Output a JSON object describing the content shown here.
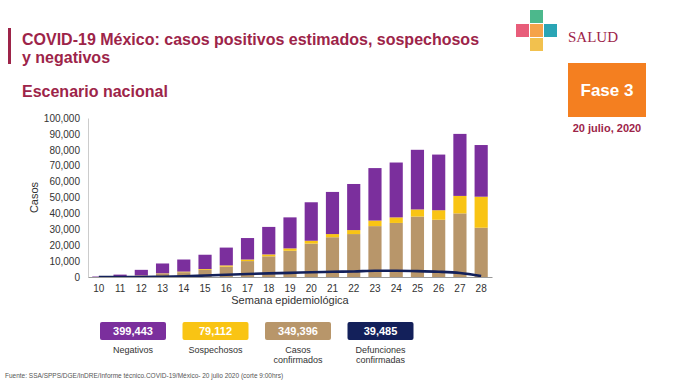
{
  "chart_data": {
    "type": "bar",
    "stacked": true,
    "title": "COVID-19 México: casos positivos estimados, sospechosos y negativos",
    "subtitle": "Escenario nacional",
    "logo_text": "SALUD",
    "phase_label": "Fase 3",
    "date_label": "20 julio, 2020",
    "source": "Fuente: SSA/SPPS/DGE/InDRE/Informe técnico.COVID-19/México- 20 julio 2020 (corte 9:00hrs)",
    "x_label": "Semana epidemiológica",
    "y_label": "Casos",
    "categories": [
      "10",
      "11",
      "12",
      "13",
      "14",
      "15",
      "16",
      "17",
      "18",
      "19",
      "20",
      "21",
      "22",
      "23",
      "24",
      "25",
      "26",
      "27",
      "28"
    ],
    "ylim": [
      0,
      100000
    ],
    "yticks": [
      0,
      {
        "value": 10000,
        "label": "10,000"
      },
      {
        "value": 20000,
        "label": "20,000"
      },
      {
        "value": 30000,
        "label": "30,000"
      },
      {
        "value": 40000,
        "label": "40,000"
      },
      {
        "value": 50000,
        "label": "50,000"
      },
      {
        "value": 60000,
        "label": "60,000"
      },
      {
        "value": 70000,
        "label": "70,000"
      },
      {
        "value": 80000,
        "label": "80,000"
      },
      {
        "value": 90000,
        "label": "90,000"
      },
      {
        "value": 100000,
        "label": "100,000"
      }
    ],
    "grid": false,
    "legend": "bottom",
    "series": [
      {
        "name": "Negativos",
        "total": "399,443",
        "color": "#7b2f9d",
        "type": "bar",
        "values": [
          300,
          1300,
          3500,
          6200,
          7600,
          9000,
          11200,
          13500,
          17300,
          19500,
          24200,
          26500,
          29000,
          33000,
          34500,
          37500,
          35000,
          39000,
          32500
        ]
      },
      {
        "name": "Sospechosos",
        "total": "79,112",
        "color": "#f9c414",
        "type": "bar",
        "values": [
          0,
          0,
          200,
          300,
          400,
          500,
          800,
          1000,
          1200,
          1500,
          1800,
          2000,
          2500,
          3500,
          3500,
          4500,
          6000,
          11000,
          19500
        ]
      },
      {
        "name": "Casos confirmados",
        "total": "349,396",
        "color": "#b8966a",
        "type": "bar",
        "values": [
          10,
          200,
          800,
          2000,
          3000,
          4500,
          6500,
          10000,
          13000,
          16500,
          21000,
          25000,
          27000,
          32000,
          34000,
          38000,
          36000,
          40000,
          31000
        ]
      },
      {
        "name": "Defunciones confirmadas",
        "total": "39,485",
        "color": "#13205a",
        "type": "line",
        "values": [
          0,
          0,
          10,
          100,
          400,
          900,
          1400,
          1900,
          2300,
          2600,
          3000,
          3300,
          3500,
          3900,
          3900,
          3700,
          3300,
          2500,
          600
        ]
      }
    ]
  }
}
